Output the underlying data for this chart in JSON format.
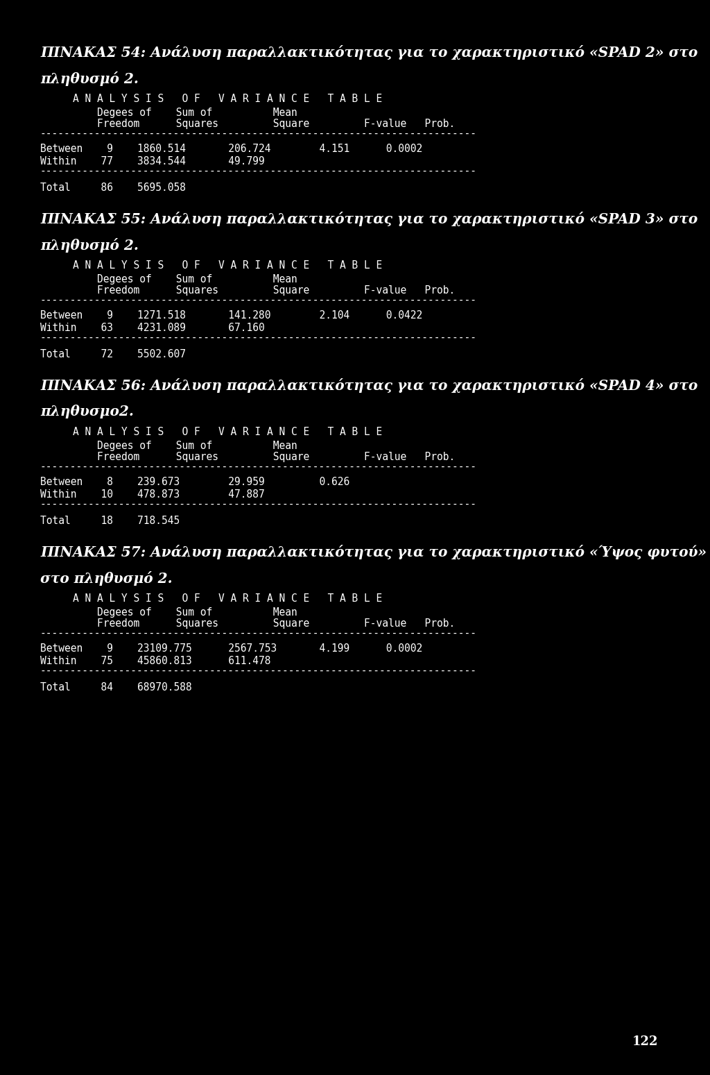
{
  "bg_color": "#000000",
  "text_color": "#ffffff",
  "sections": [
    {
      "title_line1": "ΠΙΝΑΚΑΣ 54: Ανάλυση παραλλακτικότητας για το χαρακτηριστικό «SPAD 2» στο",
      "title_line2": "πληθυσμό 2.",
      "between_df": "9",
      "between_ss": "1860.514",
      "between_ms": "206.724",
      "between_f": "4.151",
      "between_p": "0.0002",
      "within_df": "77",
      "within_ss": "3834.544",
      "within_ms": "49.799",
      "total_df": "86",
      "total_ss": "5695.058"
    },
    {
      "title_line1": "ΠΙΝΑΚΑΣ 55: Ανάλυση παραλλακτικότητας για το χαρακτηριστικό «SPAD 3» στο",
      "title_line2": "πληθυσμό 2.",
      "between_df": "9",
      "between_ss": "1271.518",
      "between_ms": "141.280",
      "between_f": "2.104",
      "between_p": "0.0422",
      "within_df": "63",
      "within_ss": "4231.089",
      "within_ms": "67.160",
      "total_df": "72",
      "total_ss": "5502.607"
    },
    {
      "title_line1": "ΠΙΝΑΚΑΣ 56: Ανάλυση παραλλακτικότητας για το χαρακτηριστικό «SPAD 4» στο",
      "title_line2": "πληθυσμο2.",
      "between_df": "8",
      "between_ss": "239.673",
      "between_ms": "29.959",
      "between_f": "0.626",
      "between_p": "",
      "within_df": "10",
      "within_ss": "478.873",
      "within_ms": "47.887",
      "total_df": "18",
      "total_ss": "718.545"
    },
    {
      "title_line1": "ΠΙΝΑΚΑΣ 57: Ανάλυση παραλλακτικότητας για το χαρακτηριστικό «Ύψος φυτού»",
      "title_line2": "στο πληθυσμό 2.",
      "between_df": "9",
      "between_ss": "23109.775",
      "between_ms": "2567.753",
      "between_f": "4.199",
      "between_p": "0.0002",
      "within_df": "75",
      "within_ss": "45860.813",
      "within_ms": "611.478",
      "total_df": "84",
      "total_ss": "68970.588"
    }
  ],
  "page_number": "122",
  "mono_fontsize": 10.5,
  "title_fontsize": 14.5,
  "page_num_fontsize": 13
}
